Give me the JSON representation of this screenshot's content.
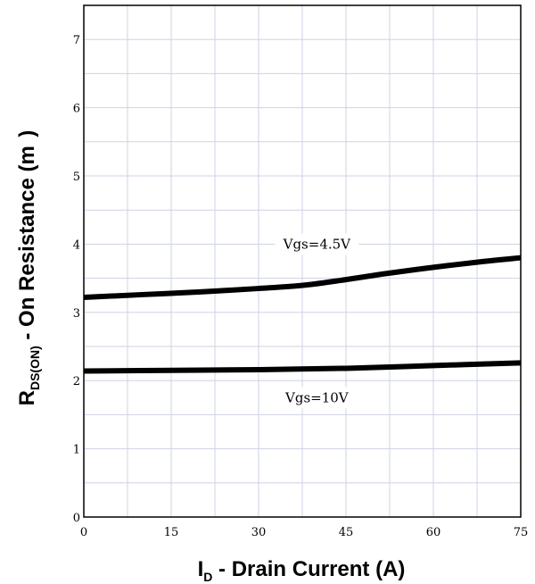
{
  "chart_data": {
    "type": "line",
    "xlabel": {
      "main": "I",
      "sub": "D",
      "rest": " - Drain Current (A)"
    },
    "ylabel": {
      "main": "R",
      "sub": "DS(ON)",
      "rest": " - On Resistance (m  )"
    },
    "xlim": [
      0,
      75
    ],
    "ylim": [
      0,
      7.5
    ],
    "x_ticks": [
      0,
      15,
      30,
      45,
      60,
      75
    ],
    "y_ticks": [
      0,
      1,
      2,
      3,
      4,
      5,
      6,
      7
    ],
    "grid": true,
    "series": [
      {
        "name": "Vgs=4.5V",
        "color": "#000000",
        "points": [
          [
            0,
            3.22
          ],
          [
            10,
            3.26
          ],
          [
            20,
            3.3
          ],
          [
            30,
            3.35
          ],
          [
            38,
            3.4
          ],
          [
            45,
            3.48
          ],
          [
            52,
            3.57
          ],
          [
            60,
            3.66
          ],
          [
            68,
            3.74
          ],
          [
            75,
            3.8
          ]
        ]
      },
      {
        "name": "Vgs=10V",
        "color": "#000000",
        "points": [
          [
            0,
            2.14
          ],
          [
            15,
            2.15
          ],
          [
            30,
            2.16
          ],
          [
            45,
            2.18
          ],
          [
            60,
            2.22
          ],
          [
            75,
            2.26
          ]
        ]
      }
    ],
    "annotations": [
      {
        "text": "Vgs=4.5V",
        "x": 40,
        "y": 4.0
      },
      {
        "text": "Vgs=10V",
        "x": 40,
        "y": 1.75
      }
    ]
  }
}
